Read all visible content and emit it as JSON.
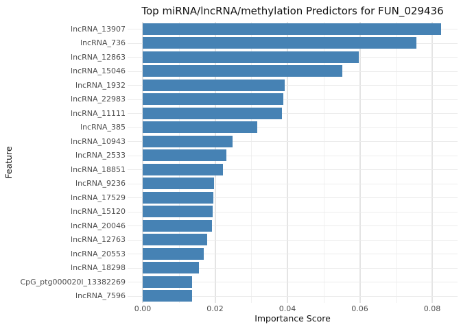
{
  "chart_data": {
    "type": "bar",
    "orientation": "horizontal",
    "title": "Top miRNA/lncRNA/methylation Predictors for FUN_029436",
    "xlabel": "Importance Score",
    "ylabel": "Feature",
    "categories": [
      "lncRNA_13907",
      "lncRNA_736",
      "lncRNA_12863",
      "lncRNA_15046",
      "lncRNA_1932",
      "lncRNA_22983",
      "lncRNA_11111",
      "lncRNA_385",
      "lncRNA_10943",
      "lncRNA_2533",
      "lncRNA_18851",
      "lncRNA_9236",
      "lncRNA_17529",
      "lncRNA_15120",
      "lncRNA_20046",
      "lncRNA_12763",
      "lncRNA_20553",
      "lncRNA_18298",
      "CpG_ptg000020l_13382269",
      "lncRNA_7596"
    ],
    "values": [
      0.0825,
      0.0756,
      0.0598,
      0.0552,
      0.0392,
      0.0388,
      0.0385,
      0.0317,
      0.0248,
      0.0231,
      0.0222,
      0.0197,
      0.0195,
      0.0193,
      0.0191,
      0.0178,
      0.0169,
      0.0155,
      0.0136,
      0.0136
    ],
    "x_ticks": [
      0,
      0.02,
      0.04,
      0.06,
      0.08
    ],
    "x_tick_labels": [
      "0.00",
      "0.02",
      "0.04",
      "0.06",
      "0.08"
    ],
    "x_minor_ticks": [
      0.01,
      0.03,
      0.05,
      0.07
    ],
    "xlim": [
      0,
      0.0872
    ],
    "bar_color": "#4682B4",
    "background_color": "#FFFFFF",
    "major_grid_color": "#E4E4E4",
    "minor_grid_color": "#F0F0F0",
    "axis_text_color": "#4D4D4D",
    "grid": true,
    "legend": "none"
  }
}
